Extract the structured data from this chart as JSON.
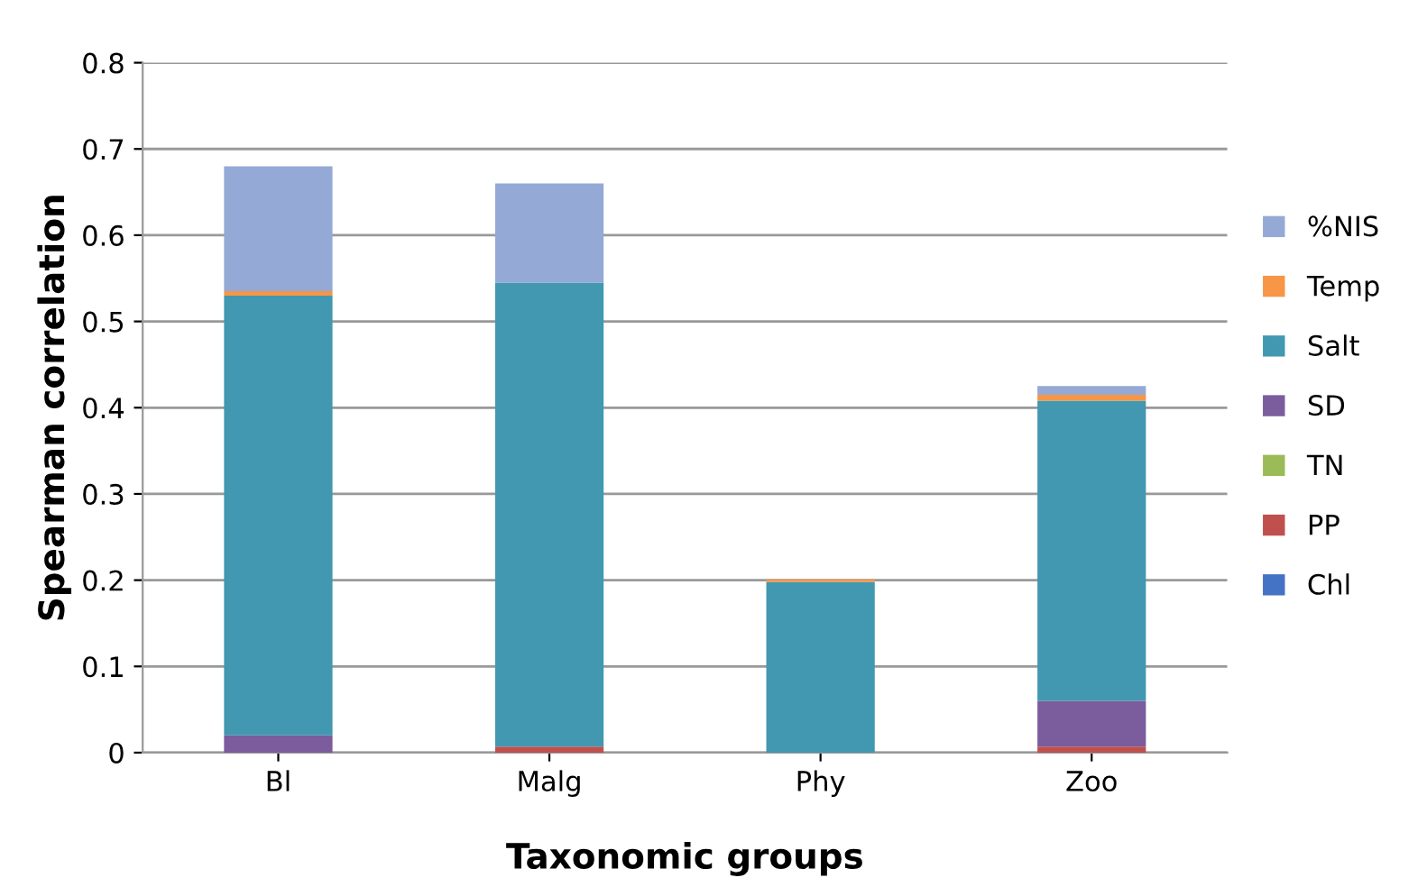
{
  "chart_data": {
    "type": "bar",
    "stacked": true,
    "xlabel": "Taxonomic groups",
    "ylabel": "Spearman correlation",
    "categories": [
      "Bl",
      "Malg",
      "Phy",
      "Zoo"
    ],
    "series": [
      {
        "name": "Chl",
        "color": "#4472c4",
        "values": [
          0,
          0,
          0,
          0
        ]
      },
      {
        "name": "PP",
        "color": "#c0504d",
        "values": [
          0,
          0.007,
          0,
          0.007
        ]
      },
      {
        "name": "TN",
        "color": "#9bbb59",
        "values": [
          0,
          0,
          0,
          0
        ]
      },
      {
        "name": "SD",
        "color": "#7b5c9c",
        "values": [
          0.02,
          0,
          0,
          0.053
        ]
      },
      {
        "name": "Salt",
        "color": "#4198b0",
        "values": [
          0.51,
          0.538,
          0.198,
          0.348
        ]
      },
      {
        "name": "Temp",
        "color": "#f79646",
        "values": [
          0.005,
          0,
          0.003,
          0.007
        ]
      },
      {
        "name": "%NIS",
        "color": "#95a9d6",
        "values": [
          0.145,
          0.115,
          0,
          0.01
        ]
      }
    ],
    "ylim": [
      0,
      0.8
    ],
    "yticks": [
      0,
      0.1,
      0.2,
      0.3,
      0.4,
      0.5,
      0.6,
      0.7,
      0.8
    ],
    "grid": "y",
    "legend": "right"
  }
}
